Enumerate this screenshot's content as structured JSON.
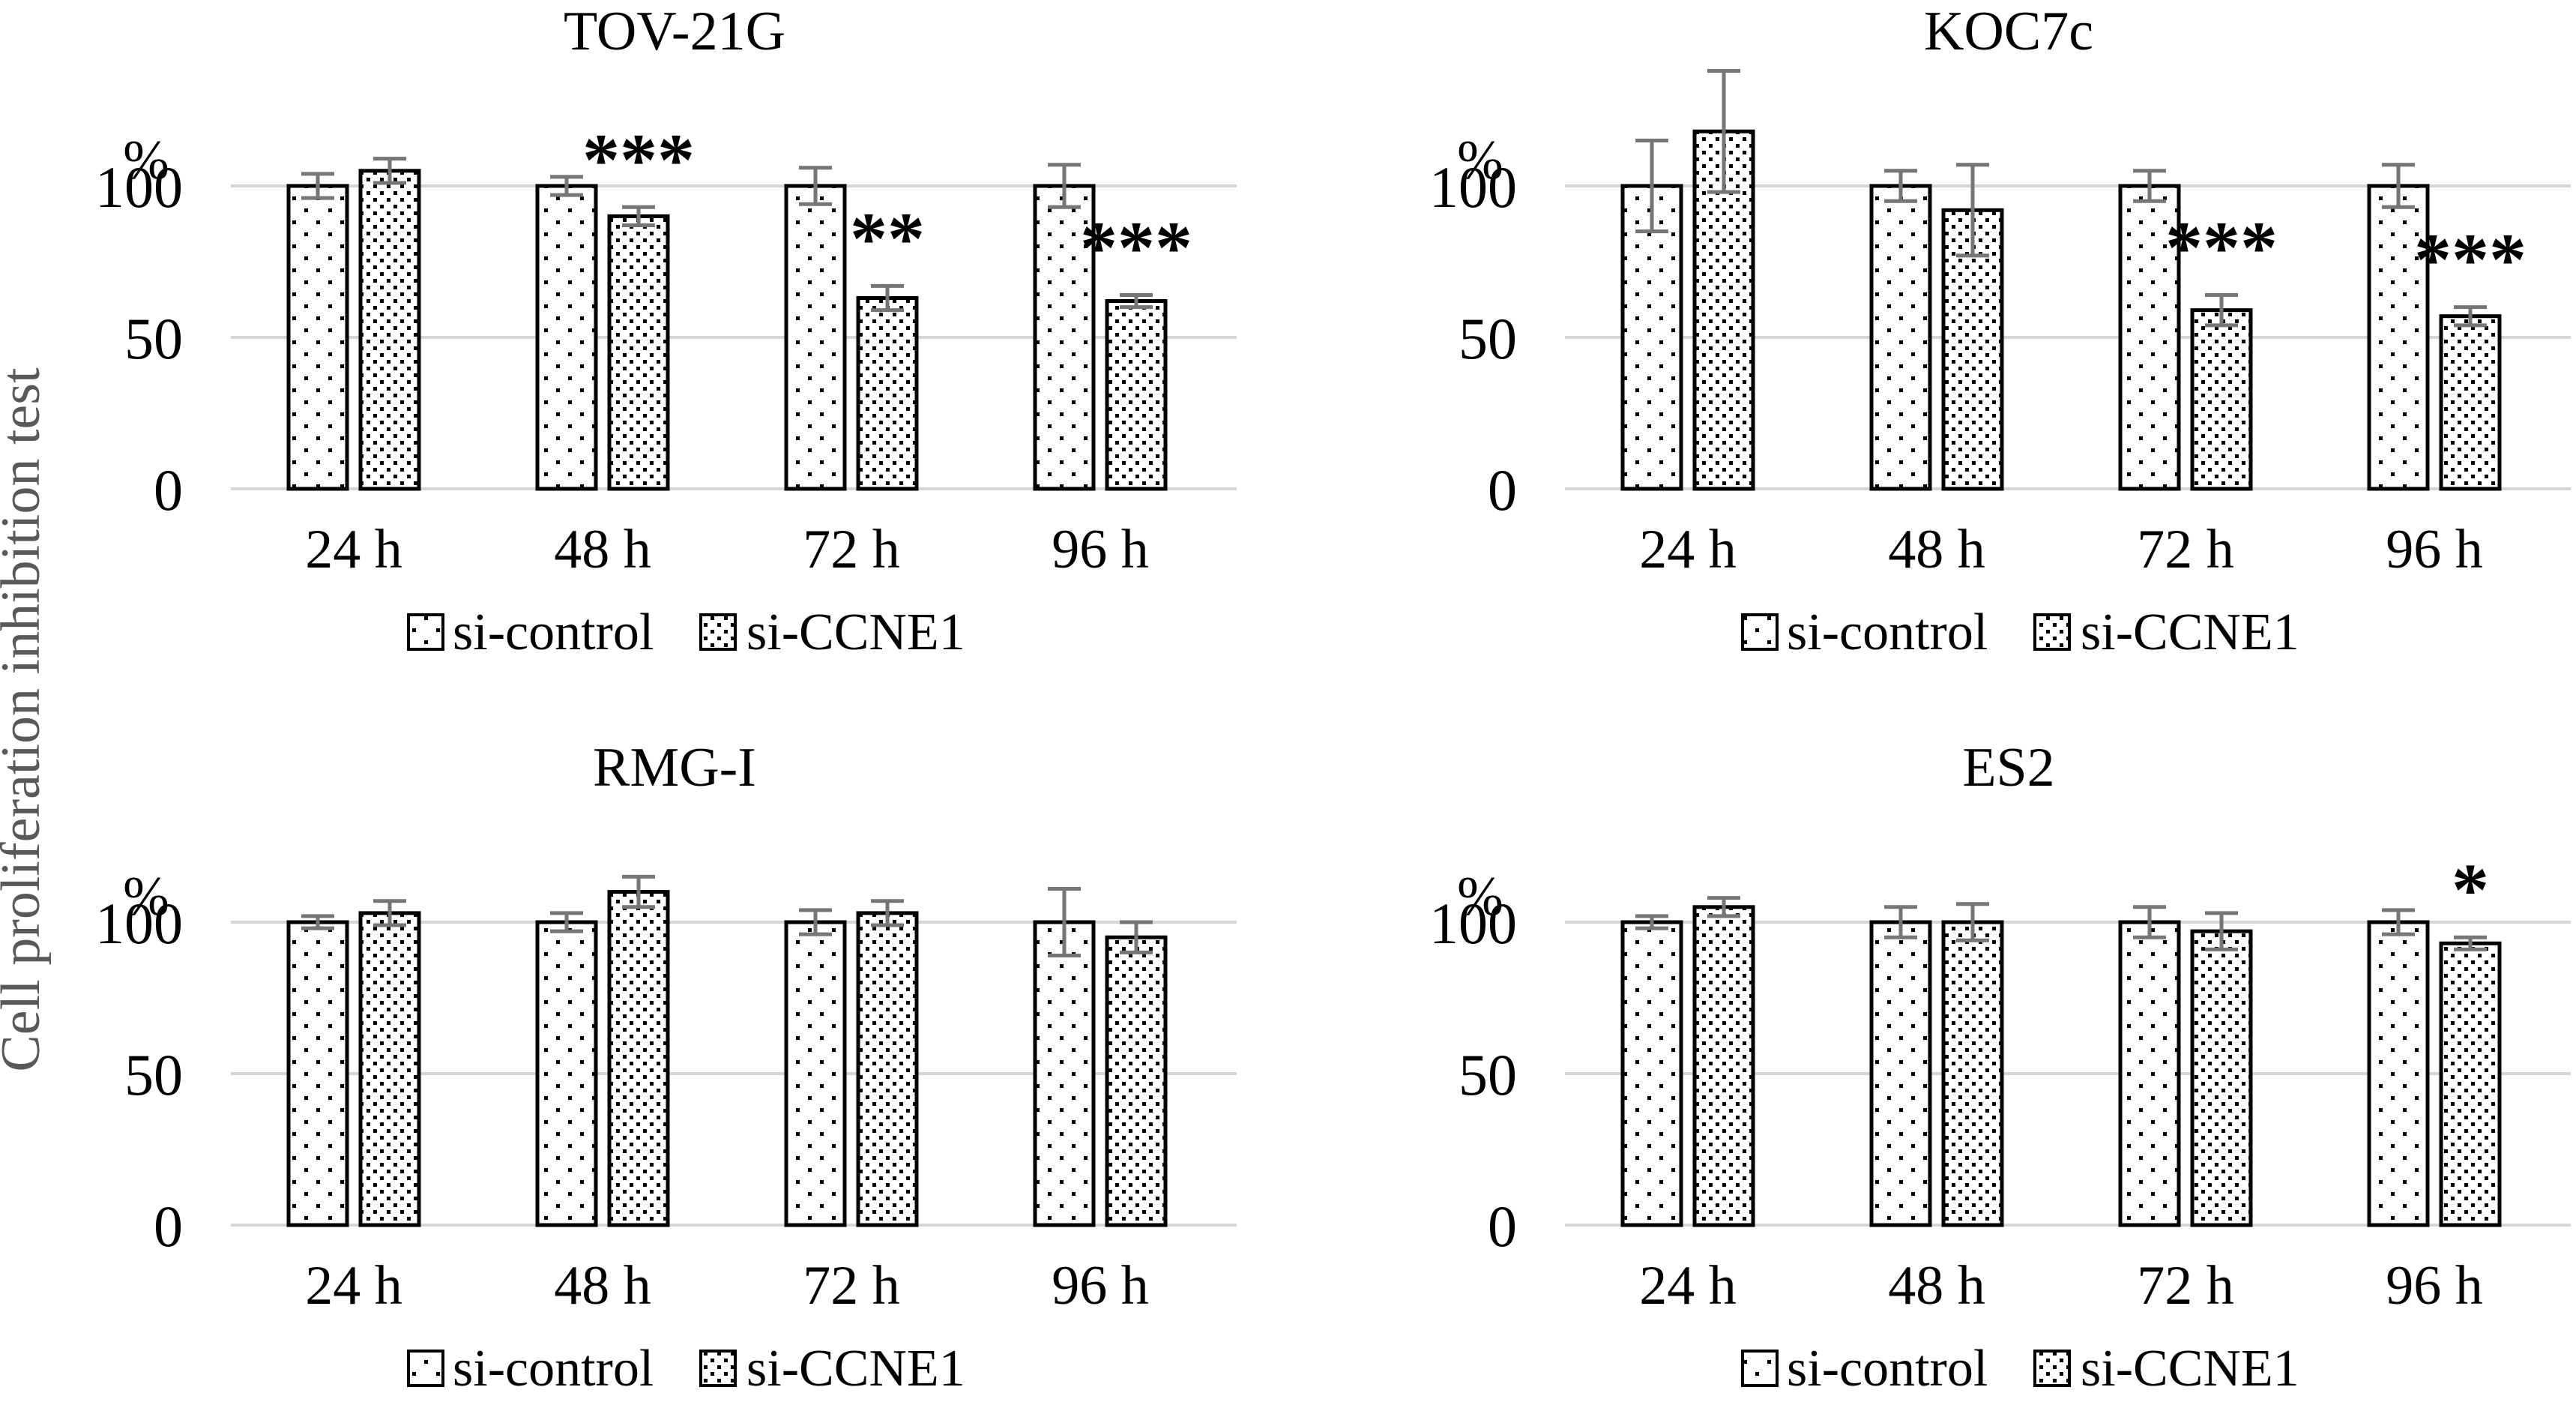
{
  "figure": {
    "ylabel": "Cell proliferation inhibition test",
    "background": "#ffffff",
    "text_color": "#000000",
    "ylabel_color": "#595959",
    "gridline_color": "#d6d6d6",
    "errorbar_color": "#767676"
  },
  "axis": {
    "unit_label": "%",
    "ticks": [
      "100",
      "50",
      "0"
    ],
    "tick_values": [
      100,
      50,
      0
    ]
  },
  "chart_data": [
    {
      "type": "bar",
      "id": "tov-21g",
      "title": "TOV-21G",
      "categories": [
        "24 h",
        "48 h",
        "72 h",
        "96 h"
      ],
      "series": [
        {
          "name": "si-control",
          "values": [
            100,
            100,
            100,
            100
          ],
          "errors": [
            4,
            3,
            6,
            7
          ]
        },
        {
          "name": "si-CCNE1",
          "values": [
            105,
            90,
            63,
            62
          ],
          "errors": [
            4,
            3,
            4,
            2
          ]
        }
      ],
      "significance": [
        "",
        "***",
        "**",
        "***"
      ],
      "significance_applies_to": "si-CCNE1",
      "ylabel": "%",
      "ylim": [
        0,
        140
      ],
      "gridlines": [
        0,
        50,
        100
      ],
      "legend_position": "bottom"
    },
    {
      "type": "bar",
      "id": "koc7c",
      "title": "KOC7c",
      "categories": [
        "24 h",
        "48 h",
        "72 h",
        "96 h"
      ],
      "series": [
        {
          "name": "si-control",
          "values": [
            100,
            100,
            100,
            100
          ],
          "errors": [
            15,
            5,
            5,
            7
          ]
        },
        {
          "name": "si-CCNE1",
          "values": [
            118,
            92,
            59,
            57
          ],
          "errors": [
            20,
            15,
            5,
            3
          ]
        }
      ],
      "significance": [
        "",
        "",
        "***",
        "***"
      ],
      "significance_applies_to": "si-CCNE1",
      "ylabel": "%",
      "ylim": [
        0,
        140
      ],
      "gridlines": [
        0,
        50,
        100
      ],
      "legend_position": "bottom"
    },
    {
      "type": "bar",
      "id": "rmg-i",
      "title": "RMG-I",
      "categories": [
        "24 h",
        "48 h",
        "72 h",
        "96 h"
      ],
      "series": [
        {
          "name": "si-control",
          "values": [
            100,
            100,
            100,
            100
          ],
          "errors": [
            2,
            3,
            4,
            11
          ]
        },
        {
          "name": "si-CCNE1",
          "values": [
            103,
            110,
            103,
            95
          ],
          "errors": [
            4,
            5,
            4,
            5
          ]
        }
      ],
      "significance": [
        "",
        "",
        "",
        ""
      ],
      "significance_applies_to": "si-CCNE1",
      "ylabel": "%",
      "ylim": [
        0,
        140
      ],
      "gridlines": [
        0,
        50,
        100
      ],
      "legend_position": "bottom"
    },
    {
      "type": "bar",
      "id": "es2",
      "title": "ES2",
      "categories": [
        "24 h",
        "48 h",
        "72 h",
        "96 h"
      ],
      "series": [
        {
          "name": "si-control",
          "values": [
            100,
            100,
            100,
            100
          ],
          "errors": [
            2,
            5,
            5,
            4
          ]
        },
        {
          "name": "si-CCNE1",
          "values": [
            105,
            100,
            97,
            93
          ],
          "errors": [
            3,
            6,
            6,
            2
          ]
        }
      ],
      "significance": [
        "",
        "",
        "",
        "*"
      ],
      "significance_applies_to": "si-CCNE1",
      "ylabel": "%",
      "ylim": [
        0,
        140
      ],
      "gridlines": [
        0,
        50,
        100
      ],
      "legend_position": "bottom"
    }
  ]
}
